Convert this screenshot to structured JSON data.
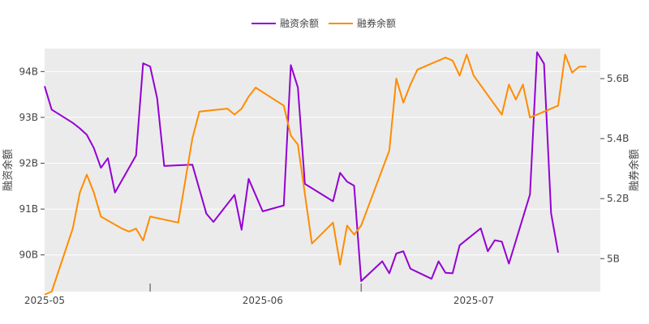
{
  "chart_data": {
    "type": "line",
    "title": "",
    "legend": {
      "position": "top-center",
      "entries": [
        "融资余额",
        "融券余额"
      ]
    },
    "xlabel": "",
    "x_ticks": [
      "2025-05",
      "2025-06",
      "2025-07"
    ],
    "x_tick_values": [
      "2025-05-01",
      "2025-06-01",
      "2025-07-01"
    ],
    "xlim": [
      "2025-05-01",
      "2025-07-19"
    ],
    "ylabel_left": "融资余额",
    "ylabel_right": "融券余额",
    "ylim_left": [
      89200000000,
      94500000000
    ],
    "ylim_right": [
      4890000000,
      5700000000
    ],
    "left_ticks": [
      {
        "value": 90000000000,
        "label": "90B"
      },
      {
        "value": 91000000000,
        "label": "91B"
      },
      {
        "value": 92000000000,
        "label": "92B"
      },
      {
        "value": 93000000000,
        "label": "93B"
      },
      {
        "value": 94000000000,
        "label": "94B"
      }
    ],
    "right_ticks": [
      {
        "value": 5000000000,
        "label": "5B"
      },
      {
        "value": 5200000000,
        "label": "5.2B"
      },
      {
        "value": 5400000000,
        "label": "5.4B"
      },
      {
        "value": 5600000000,
        "label": "5.6B"
      }
    ],
    "grid": true,
    "colors": {
      "margin_balance": "#9400d3",
      "short_balance": "#ff8c00",
      "plot_bg": "#ebebeb",
      "grid": "#ffffff"
    },
    "series": [
      {
        "name": "融资余额",
        "axis": "left",
        "color": "#9400d3",
        "points": [
          [
            "2025-05-01",
            93680000000
          ],
          [
            "2025-05-02",
            93170000000
          ],
          [
            "2025-05-05",
            92880000000
          ],
          [
            "2025-05-06",
            92760000000
          ],
          [
            "2025-05-07",
            92620000000
          ],
          [
            "2025-05-08",
            92330000000
          ],
          [
            "2025-05-09",
            91900000000
          ],
          [
            "2025-05-10",
            92110000000
          ],
          [
            "2025-05-11",
            91360000000
          ],
          [
            "2025-05-14",
            92170000000
          ],
          [
            "2025-05-15",
            94180000000
          ],
          [
            "2025-05-16",
            94110000000
          ],
          [
            "2025-05-17",
            93420000000
          ],
          [
            "2025-05-18",
            91940000000
          ],
          [
            "2025-05-22",
            91970000000
          ],
          [
            "2025-05-24",
            90900000000
          ],
          [
            "2025-05-25",
            90720000000
          ],
          [
            "2025-05-28",
            91310000000
          ],
          [
            "2025-05-29",
            90550000000
          ],
          [
            "2025-05-30",
            91660000000
          ],
          [
            "2025-06-01",
            90950000000
          ],
          [
            "2025-06-04",
            91080000000
          ],
          [
            "2025-06-05",
            94140000000
          ],
          [
            "2025-06-06",
            93650000000
          ],
          [
            "2025-06-07",
            91550000000
          ],
          [
            "2025-06-11",
            91170000000
          ],
          [
            "2025-06-12",
            91790000000
          ],
          [
            "2025-06-13",
            91600000000
          ],
          [
            "2025-06-14",
            91510000000
          ],
          [
            "2025-06-15",
            89430000000
          ],
          [
            "2025-06-18",
            89860000000
          ],
          [
            "2025-06-19",
            89600000000
          ],
          [
            "2025-06-20",
            90030000000
          ],
          [
            "2025-06-21",
            90080000000
          ],
          [
            "2025-06-22",
            89700000000
          ],
          [
            "2025-06-25",
            89480000000
          ],
          [
            "2025-06-26",
            89860000000
          ],
          [
            "2025-06-27",
            89610000000
          ],
          [
            "2025-06-28",
            89600000000
          ],
          [
            "2025-06-29",
            90210000000
          ],
          [
            "2025-07-02",
            90580000000
          ],
          [
            "2025-07-03",
            90080000000
          ],
          [
            "2025-07-04",
            90320000000
          ],
          [
            "2025-07-05",
            90290000000
          ],
          [
            "2025-07-06",
            89810000000
          ],
          [
            "2025-07-09",
            91320000000
          ],
          [
            "2025-07-10",
            94420000000
          ],
          [
            "2025-07-11",
            94170000000
          ],
          [
            "2025-07-12",
            90910000000
          ],
          [
            "2025-07-13",
            90050000000
          ]
        ]
      },
      {
        "name": "融券余额",
        "axis": "right",
        "color": "#ff8c00",
        "points": [
          [
            "2025-05-01",
            4880000000
          ],
          [
            "2025-05-02",
            4890000000
          ],
          [
            "2025-05-05",
            5100000000
          ],
          [
            "2025-05-06",
            5220000000
          ],
          [
            "2025-05-07",
            5280000000
          ],
          [
            "2025-05-08",
            5220000000
          ],
          [
            "2025-05-09",
            5140000000
          ],
          [
            "2025-05-12",
            5100000000
          ],
          [
            "2025-05-13",
            5090000000
          ],
          [
            "2025-05-14",
            5100000000
          ],
          [
            "2025-05-15",
            5060000000
          ],
          [
            "2025-05-16",
            5140000000
          ],
          [
            "2025-05-20",
            5120000000
          ],
          [
            "2025-05-22",
            5400000000
          ],
          [
            "2025-05-23",
            5490000000
          ],
          [
            "2025-05-27",
            5500000000
          ],
          [
            "2025-05-28",
            5480000000
          ],
          [
            "2025-05-29",
            5500000000
          ],
          [
            "2025-05-30",
            5540000000
          ],
          [
            "2025-05-31",
            5570000000
          ],
          [
            "2025-06-02",
            5540000000
          ],
          [
            "2025-06-04",
            5510000000
          ],
          [
            "2025-06-05",
            5410000000
          ],
          [
            "2025-06-06",
            5380000000
          ],
          [
            "2025-06-08",
            5050000000
          ],
          [
            "2025-06-11",
            5120000000
          ],
          [
            "2025-06-12",
            4980000000
          ],
          [
            "2025-06-13",
            5110000000
          ],
          [
            "2025-06-14",
            5080000000
          ],
          [
            "2025-06-15",
            5110000000
          ],
          [
            "2025-06-19",
            5360000000
          ],
          [
            "2025-06-20",
            5600000000
          ],
          [
            "2025-06-21",
            5520000000
          ],
          [
            "2025-06-22",
            5580000000
          ],
          [
            "2025-06-23",
            5630000000
          ],
          [
            "2025-06-27",
            5670000000
          ],
          [
            "2025-06-28",
            5660000000
          ],
          [
            "2025-06-29",
            5610000000
          ],
          [
            "2025-06-30",
            5680000000
          ],
          [
            "2025-07-01",
            5610000000
          ],
          [
            "2025-07-05",
            5480000000
          ],
          [
            "2025-07-06",
            5580000000
          ],
          [
            "2025-07-07",
            5530000000
          ],
          [
            "2025-07-08",
            5580000000
          ],
          [
            "2025-07-09",
            5470000000
          ],
          [
            "2025-07-13",
            5510000000
          ],
          [
            "2025-07-14",
            5680000000
          ],
          [
            "2025-07-15",
            5620000000
          ],
          [
            "2025-07-16",
            5640000000
          ],
          [
            "2025-07-17",
            5640000000
          ]
        ]
      }
    ]
  }
}
